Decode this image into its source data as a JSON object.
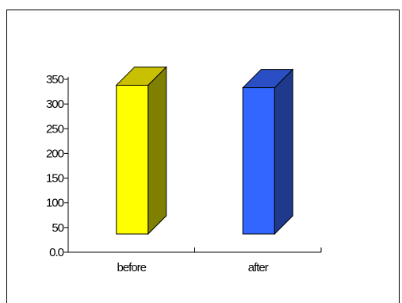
{
  "chart_data": {
    "type": "bar",
    "style": "3d-column",
    "title": "",
    "xlabel": "",
    "ylabel": "",
    "categories": [
      "before",
      "after"
    ],
    "values": [
      330,
      325
    ],
    "ylim": [
      0,
      350
    ],
    "yticks": [
      "0.0",
      "50",
      "100",
      "150",
      "200",
      "250",
      "300",
      "350"
    ],
    "ytick_values": [
      0,
      50,
      100,
      150,
      200,
      250,
      300,
      350
    ],
    "grid": false,
    "legend": "none",
    "colors": {
      "before": {
        "front": "#ffff00",
        "top": "#c8c000",
        "side": "#808000"
      },
      "after": {
        "front": "#3366ff",
        "top": "#2a4fc4",
        "side": "#1f3a8c"
      }
    }
  }
}
